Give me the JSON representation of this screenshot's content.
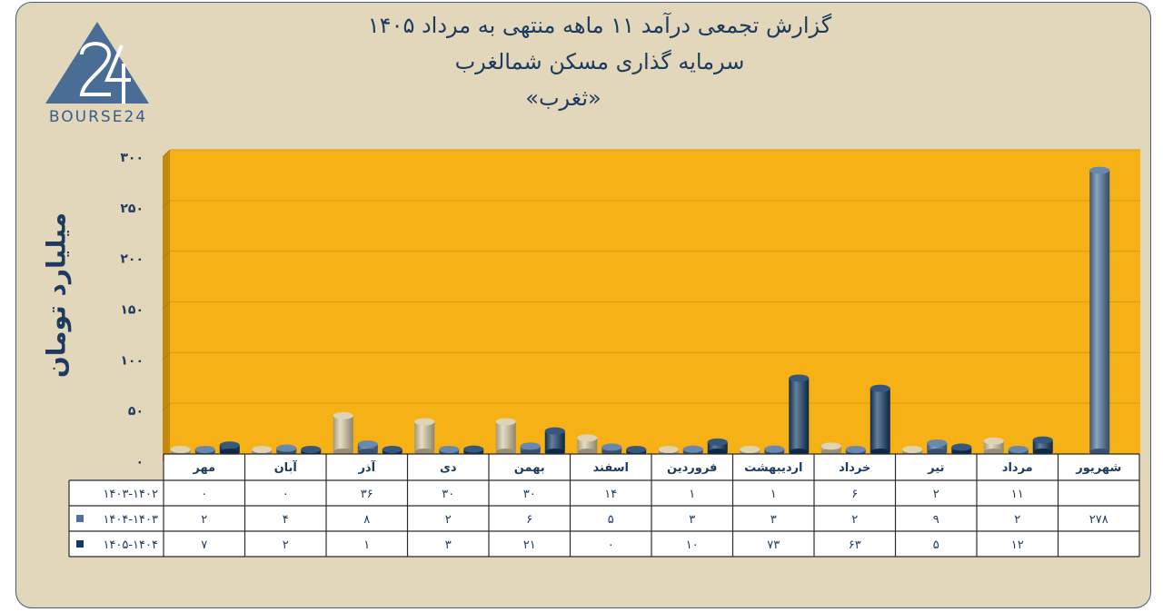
{
  "header": {
    "line1": "گزارش تجمعی درآمد ۱۱ ماهه منتهی به مرداد ۱۴۰۵",
    "line2": "سرمایه گذاری مسکن شمالغرب",
    "line3": "«ثغرب»"
  },
  "logo": {
    "text": "BOURSE24",
    "mark": "24"
  },
  "chart_data": {
    "type": "bar",
    "ylabel": "میلیارد تومان",
    "ylim": [
      0,
      300
    ],
    "yticks": [
      0,
      50,
      100,
      150,
      200,
      250,
      300
    ],
    "ytick_labels": [
      "۰",
      "۵۰",
      "۱۰۰",
      "۱۵۰",
      "۲۰۰",
      "۲۵۰",
      "۳۰۰"
    ],
    "categories": [
      "مهر",
      "آبان",
      "آذر",
      "دی",
      "بهمن",
      "اسفند",
      "فروردین",
      "اردیبهشت",
      "خرداد",
      "تیر",
      "مرداد",
      "شهریور"
    ],
    "series": [
      {
        "name": "۱۴۰۳-۱۴۰۲",
        "color": "#d9cba5",
        "values": [
          0,
          0,
          36,
          30,
          30,
          14,
          1,
          1,
          6,
          2,
          11,
          null
        ],
        "labels": [
          "۰",
          "۰",
          "۳۶",
          "۳۰",
          "۳۰",
          "۱۴",
          "۱",
          "۱",
          "۶",
          "۲",
          "۱۱",
          ""
        ]
      },
      {
        "name": "۱۴۰۴-۱۴۰۳",
        "color": "#4f739e",
        "values": [
          2,
          4,
          8,
          2,
          6,
          5,
          3,
          3,
          2,
          9,
          2,
          278
        ],
        "labels": [
          "۲",
          "۴",
          "۸",
          "۲",
          "۶",
          "۵",
          "۳",
          "۳",
          "۲",
          "۹",
          "۲",
          "۲۷۸"
        ]
      },
      {
        "name": "۱۴۰۵-۱۴۰۴",
        "color": "#123a66",
        "values": [
          7,
          2,
          1,
          3,
          21,
          0,
          10,
          73,
          63,
          5,
          12,
          null
        ],
        "labels": [
          "۷",
          "۲",
          "۱",
          "۳",
          "۲۱",
          "۰",
          "۱۰",
          "۷۳",
          "۶۳",
          "۵",
          "۱۲",
          ""
        ]
      }
    ],
    "plot_background": "#f6b117",
    "grid": true,
    "legend": "data-table"
  }
}
